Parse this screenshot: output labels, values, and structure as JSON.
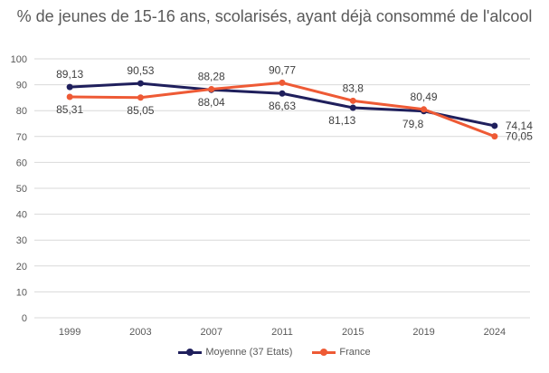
{
  "chart_data": {
    "type": "line",
    "title": "% de jeunes de 15-16 ans, scolarisés, ayant déjà consommé de l'alcool",
    "categories": [
      "1999",
      "2003",
      "2007",
      "2011",
      "2015",
      "2019",
      "2024"
    ],
    "ylim": [
      0,
      100
    ],
    "yticks": [
      0,
      10,
      20,
      30,
      40,
      50,
      60,
      70,
      80,
      90,
      100
    ],
    "grid": true,
    "legend": "bottom",
    "series": [
      {
        "name": "Moyenne (37 Etats)",
        "color": "#1f1f5c",
        "values": [
          89.13,
          90.53,
          88.04,
          86.63,
          81.13,
          79.8,
          74.14
        ],
        "labels": [
          "89,13",
          "90,53",
          "88,04",
          "86,63",
          "81,13",
          "79,8",
          "74,14"
        ]
      },
      {
        "name": "France",
        "color": "#ee5a35",
        "values": [
          85.31,
          85.05,
          88.28,
          90.77,
          83.8,
          80.49,
          70.05
        ],
        "labels": [
          "85,31",
          "85,05",
          "88,28",
          "90,77",
          "83,8",
          "80,49",
          "70,05"
        ]
      }
    ]
  }
}
